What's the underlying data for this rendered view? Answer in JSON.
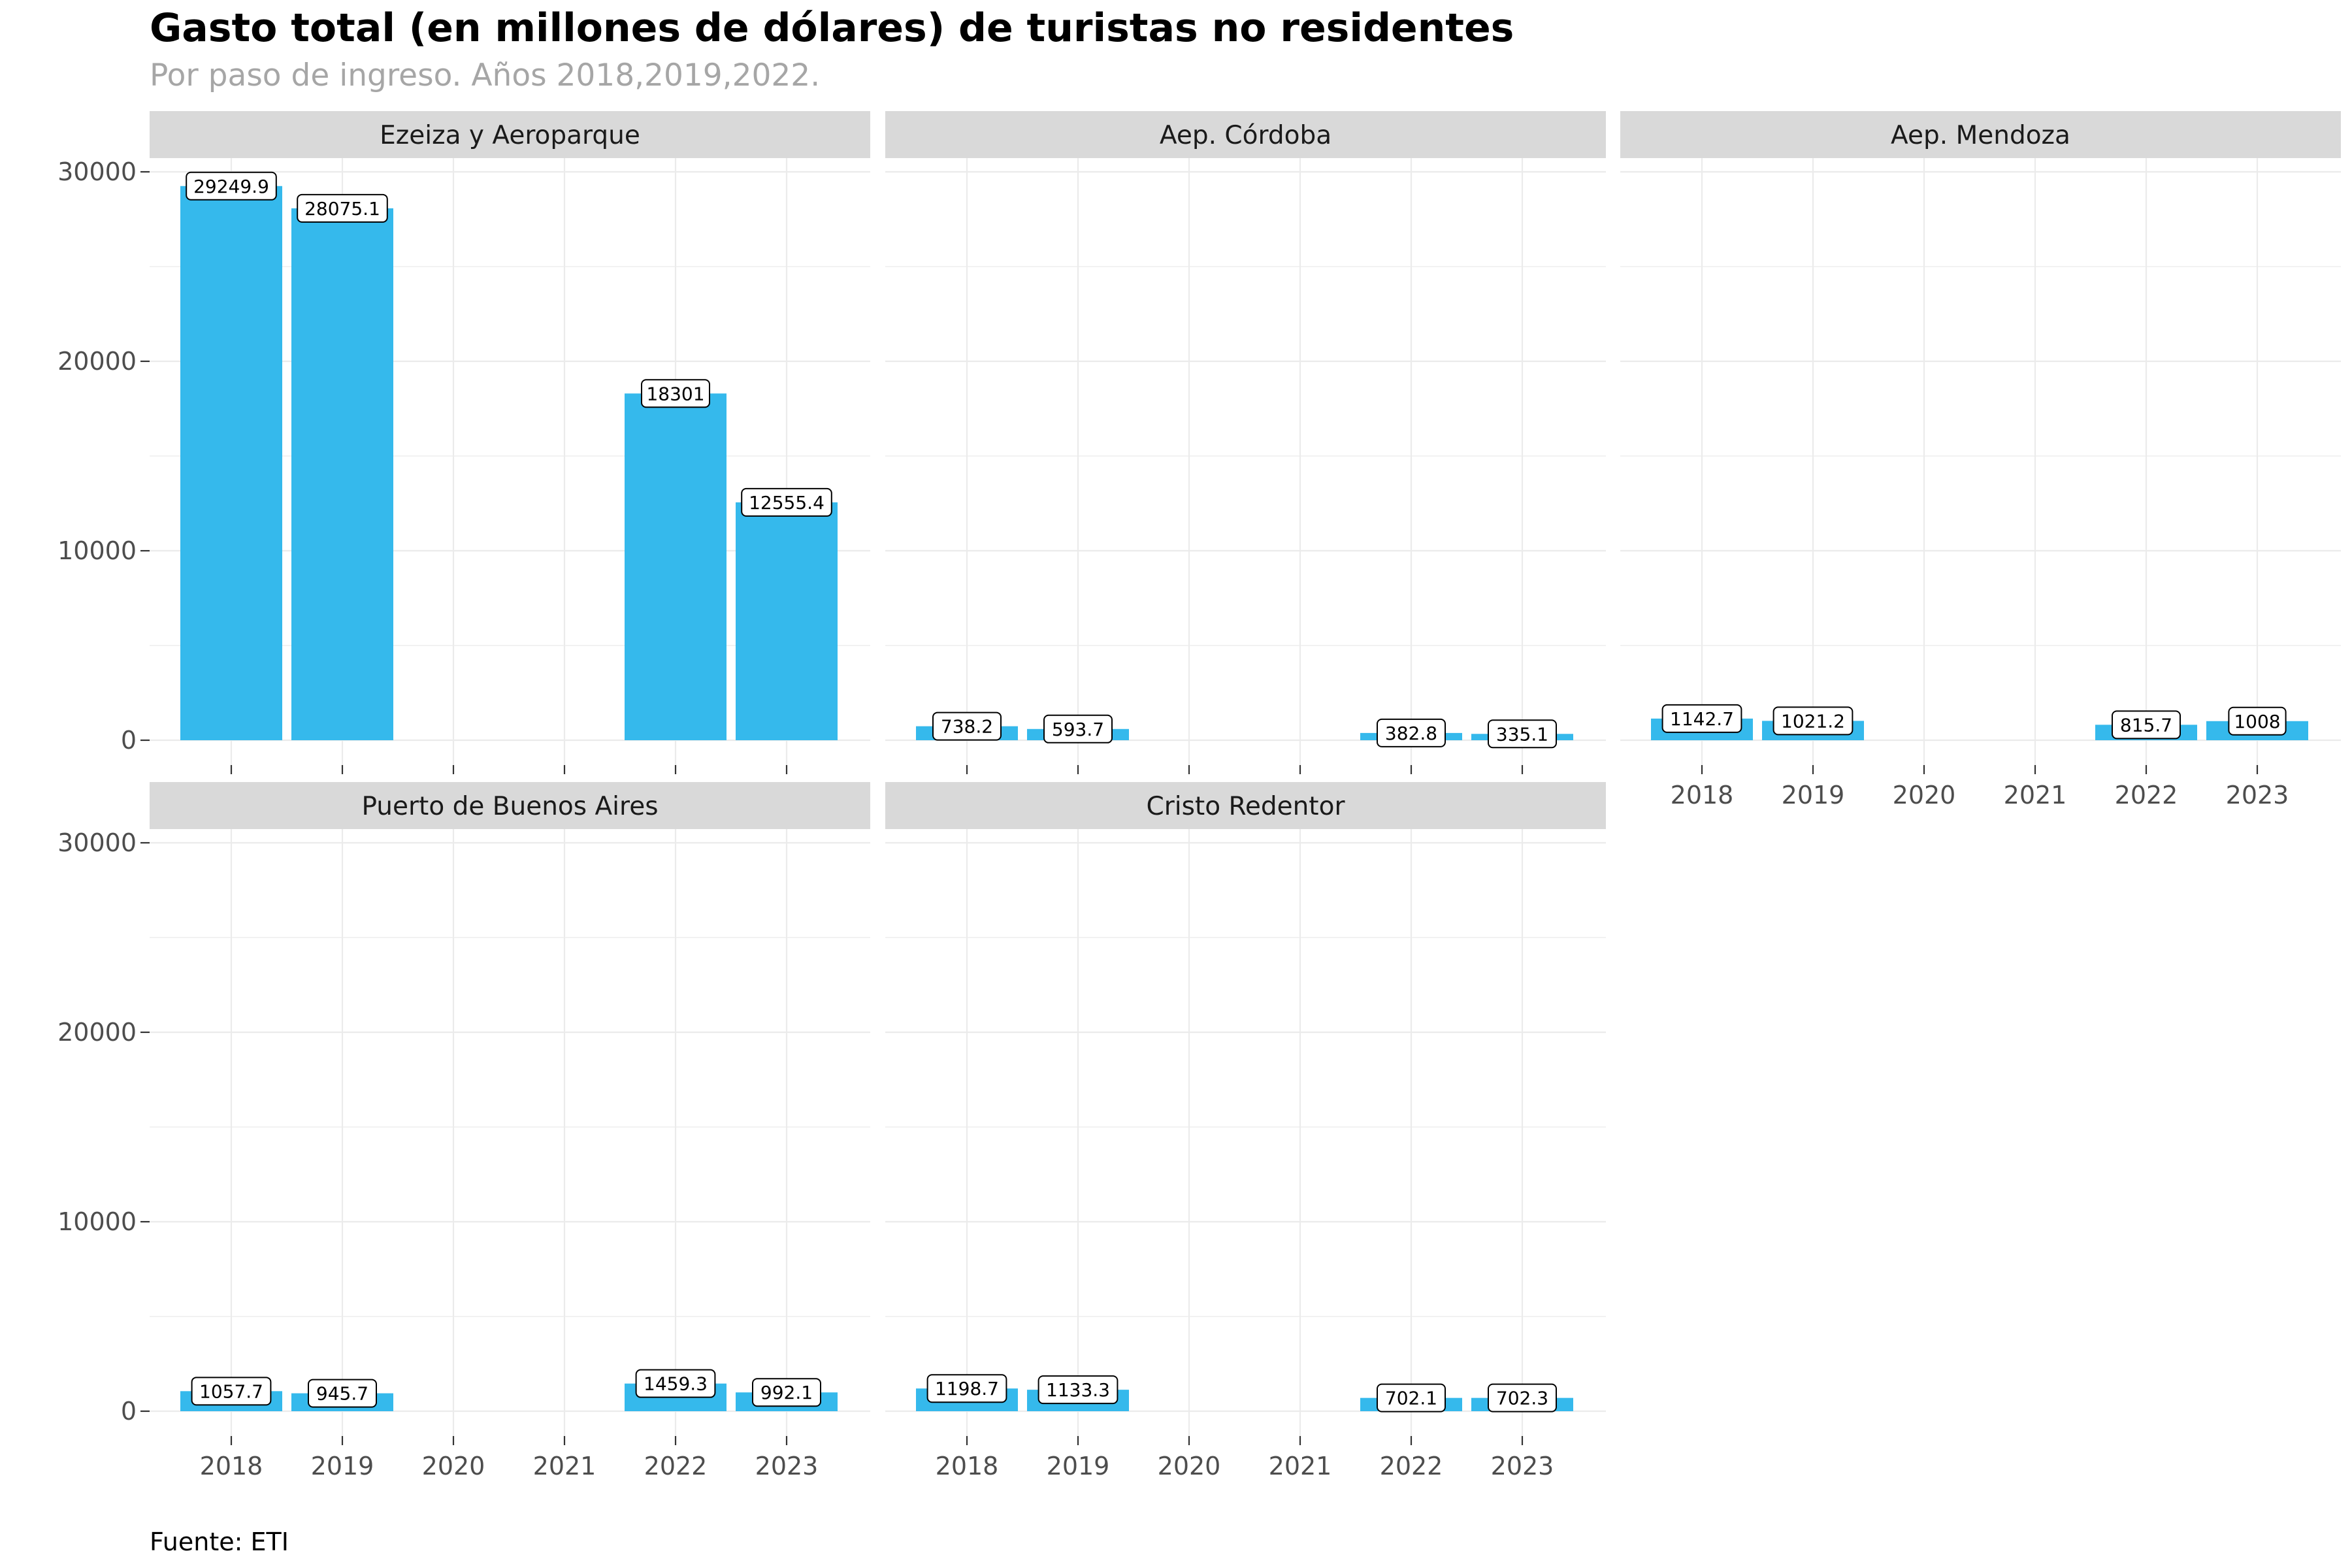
{
  "title": "Gasto total (en millones de dólares) de turistas no residentes",
  "subtitle": "Por paso de ingreso. Años 2018,2019,2022.",
  "caption": "Fuente: ETI",
  "colors": {
    "bar": "#35b9ec",
    "strip": "#d9d9d9",
    "grid": "#ebebeb"
  },
  "chart_data": {
    "type": "bar",
    "facets": [
      "Ezeiza y Aeroparque",
      "Aep. Córdoba",
      "Aep. Mendoza",
      "Puerto de Buenos Aires",
      "Cristo Redentor"
    ],
    "categories": [
      "2018",
      "2019",
      "2020",
      "2021",
      "2022",
      "2023"
    ],
    "series": [
      {
        "facet": "Ezeiza y Aeroparque",
        "values": [
          29249.9,
          28075.1,
          null,
          null,
          18301,
          12555.4
        ],
        "labels": [
          "29249.9",
          "28075.1",
          null,
          null,
          "18301",
          "12555.4"
        ]
      },
      {
        "facet": "Aep. Córdoba",
        "values": [
          738.2,
          593.7,
          null,
          null,
          382.8,
          335.1
        ],
        "labels": [
          "738.2",
          "593.7",
          null,
          null,
          "382.8",
          "335.1"
        ]
      },
      {
        "facet": "Aep. Mendoza",
        "values": [
          1142.7,
          1021.2,
          null,
          null,
          815.7,
          1008
        ],
        "labels": [
          "1142.7",
          "1021.2",
          null,
          null,
          "815.7",
          "1008"
        ]
      },
      {
        "facet": "Puerto de Buenos Aires",
        "values": [
          1057.7,
          945.7,
          null,
          null,
          1459.3,
          992.1
        ],
        "labels": [
          "1057.7",
          "945.7",
          null,
          null,
          "1459.3",
          "992.1"
        ]
      },
      {
        "facet": "Cristo Redentor",
        "values": [
          1198.7,
          1133.3,
          null,
          null,
          702.1,
          702.3
        ],
        "labels": [
          "1198.7",
          "1133.3",
          null,
          null,
          "702.1",
          "702.3"
        ]
      }
    ],
    "yticks": [
      "0",
      "10000",
      "20000",
      "30000"
    ],
    "ylim": [
      0,
      30000
    ],
    "grid": true,
    "legend": "none"
  }
}
